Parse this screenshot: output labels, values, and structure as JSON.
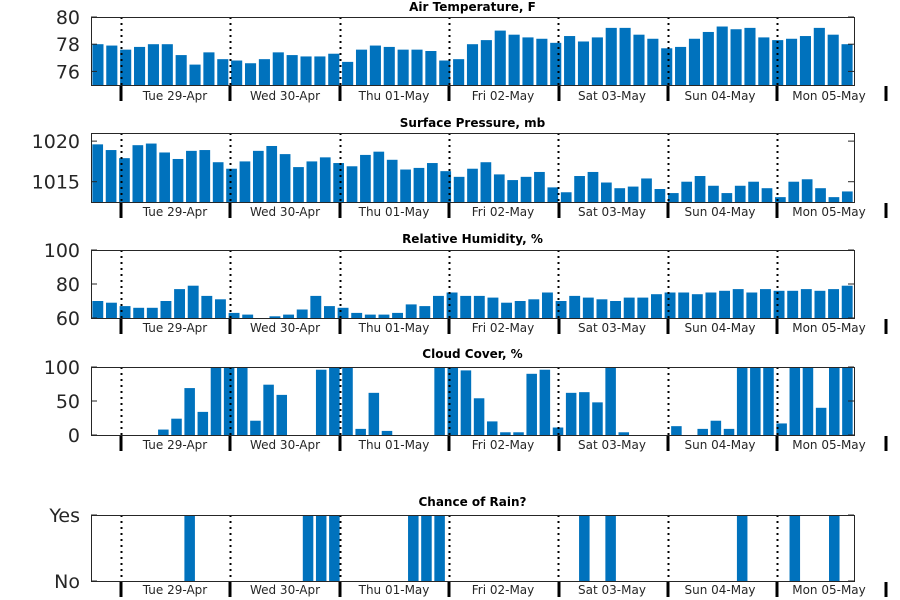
{
  "colors": {
    "bar": "#0072bd",
    "axis": "#262626",
    "divider": "#000000"
  },
  "chart_data": [
    {
      "type": "bar",
      "title": "Air Temperature, F",
      "grid": false,
      "ylim": [
        75,
        80
      ],
      "yticks": [
        76,
        78,
        80
      ],
      "yticklabels": [
        "76",
        "78",
        "80"
      ],
      "xlabels": [
        "Tue 29-Apr",
        "Wed 30-Apr",
        "Thu 01-May",
        "Fri 02-May",
        "Sat 03-May",
        "Sun 04-May",
        "Mon 05-May"
      ],
      "values": [
        78.0,
        77.9,
        77.6,
        77.8,
        78.0,
        78.0,
        77.2,
        76.5,
        77.4,
        76.9,
        76.8,
        76.6,
        76.9,
        77.4,
        77.2,
        77.1,
        77.1,
        77.3,
        76.7,
        77.6,
        77.9,
        77.8,
        77.6,
        77.6,
        77.5,
        76.8,
        76.9,
        78.0,
        78.3,
        79.0,
        78.7,
        78.5,
        78.4,
        78.1,
        78.6,
        78.2,
        78.5,
        79.2,
        79.2,
        78.7,
        78.4,
        77.7,
        77.8,
        78.4,
        78.9,
        79.3,
        79.1,
        79.2,
        78.5,
        78.3,
        78.4,
        78.6,
        79.2,
        78.7,
        78.0
      ]
    },
    {
      "type": "bar",
      "title": "Surface Pressure, mb",
      "grid": false,
      "ylim": [
        1012.5,
        1021
      ],
      "yticks": [
        1015,
        1020
      ],
      "yticklabels": [
        "1015",
        "1020"
      ],
      "xlabels": [
        "Tue 29-Apr",
        "Wed 30-Apr",
        "Thu 01-May",
        "Fri 02-May",
        "Sat 03-May",
        "Sun 04-May",
        "Mon 05-May"
      ],
      "values": [
        1019.6,
        1018.9,
        1017.9,
        1019.5,
        1019.7,
        1018.6,
        1017.8,
        1018.8,
        1018.9,
        1017.4,
        1016.6,
        1017.5,
        1018.8,
        1019.4,
        1018.4,
        1016.8,
        1017.5,
        1018.0,
        1017.3,
        1016.9,
        1018.3,
        1018.7,
        1017.7,
        1016.5,
        1016.7,
        1017.3,
        1016.3,
        1015.6,
        1016.6,
        1017.4,
        1015.9,
        1015.2,
        1015.6,
        1016.2,
        1014.3,
        1013.7,
        1015.7,
        1016.2,
        1014.9,
        1014.2,
        1014.4,
        1015.4,
        1014.1,
        1013.6,
        1015.0,
        1015.7,
        1014.5,
        1013.6,
        1014.5,
        1015.0,
        1014.2,
        1013.1,
        1015.0,
        1015.3,
        1014.2,
        1013.1,
        1013.8
      ]
    },
    {
      "type": "bar",
      "title": "Relative Humidity, %",
      "grid": false,
      "ylim": [
        60,
        100
      ],
      "yticks": [
        60,
        80,
        100
      ],
      "yticklabels": [
        "60",
        "80",
        "100"
      ],
      "xlabels": [
        "Tue 29-Apr",
        "Wed 30-Apr",
        "Thu 01-May",
        "Fri 02-May",
        "Sat 03-May",
        "Sun 04-May",
        "Mon 05-May"
      ],
      "values": [
        70,
        69,
        67,
        66,
        66,
        70,
        77,
        79,
        73,
        71,
        63,
        62,
        60,
        61,
        62,
        65,
        73,
        67,
        66,
        63,
        62,
        62,
        63,
        68,
        67,
        73,
        75,
        73,
        73,
        72,
        69,
        70,
        71,
        75,
        70,
        73,
        72,
        71,
        70,
        72,
        72,
        74,
        75,
        75,
        74,
        75,
        76,
        77,
        75,
        77,
        76,
        76,
        77,
        76,
        77,
        79
      ]
    },
    {
      "type": "bar",
      "title": "Cloud Cover, %",
      "grid": false,
      "ylim": [
        0,
        100
      ],
      "yticks": [
        0,
        50,
        100
      ],
      "yticklabels": [
        "0",
        "50",
        "100"
      ],
      "xlabels": [
        "Tue 29-Apr",
        "Wed 30-Apr",
        "Thu 01-May",
        "Fri 02-May",
        "Sat 03-May",
        "Sun 04-May",
        "Mon 05-May"
      ],
      "values": [
        0,
        0,
        0,
        0,
        0,
        8,
        24,
        69,
        34,
        100,
        100,
        100,
        21,
        74,
        59,
        0,
        0,
        96,
        100,
        100,
        9,
        62,
        6,
        0,
        0,
        0,
        100,
        100,
        95,
        54,
        20,
        4,
        4,
        90,
        96,
        11,
        62,
        63,
        48,
        100,
        4,
        0,
        0,
        0,
        13,
        0,
        9,
        21,
        9,
        100,
        100,
        100,
        17,
        100,
        100,
        40,
        100,
        100
      ]
    },
    {
      "type": "bar",
      "title": "Chance of Rain?",
      "grid": false,
      "ylim": [
        0,
        1
      ],
      "yticks": [
        0,
        1
      ],
      "yticklabels": [
        "No",
        "Yes"
      ],
      "xlabels": [
        "Tue 29-Apr",
        "Wed 30-Apr",
        "Thu 01-May",
        "Fri 02-May",
        "Sat 03-May",
        "Sun 04-May",
        "Mon 05-May"
      ],
      "values": [
        0,
        0,
        0,
        0,
        0,
        0,
        0,
        1,
        0,
        0,
        0,
        0,
        0,
        0,
        0,
        0,
        1,
        1,
        1,
        0,
        0,
        0,
        0,
        0,
        1,
        1,
        1,
        0,
        0,
        0,
        0,
        0,
        0,
        0,
        0,
        0,
        0,
        1,
        0,
        1,
        0,
        0,
        0,
        0,
        0,
        0,
        0,
        0,
        0,
        1,
        0,
        0,
        0,
        1,
        0,
        0,
        1,
        0
      ]
    }
  ]
}
